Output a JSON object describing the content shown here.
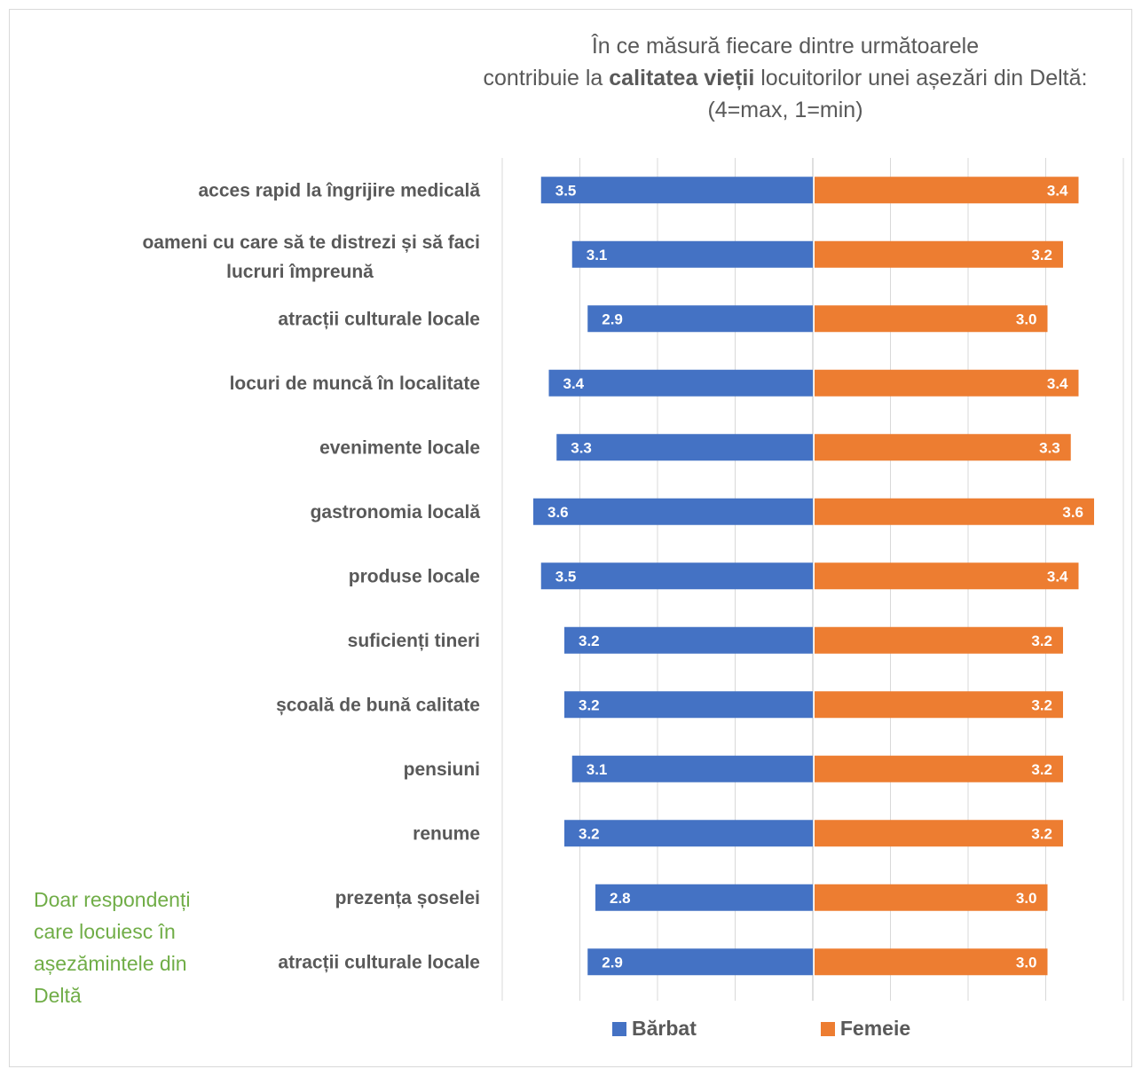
{
  "chart_data": {
    "type": "bar",
    "orientation": "horizontal-diverging",
    "title_line1": "În ce măsură fiecare dintre următoarele",
    "title_line2_pre": "contribuie la ",
    "title_line2_bold": "calitatea vieții",
    "title_line2_post": " locuitorilor unei așezări din Deltă:",
    "title_line3": "(4=max, 1=min)",
    "categories": [
      "acces rapid la îngrijire medicală",
      "oameni cu care să te distrezi și să faci lucruri împreună",
      "atracții culturale locale",
      "locuri de muncă în localitate",
      "evenimente locale",
      "gastronomia locală",
      "produse locale",
      "suficienți tineri",
      "școală de bună calitate",
      "pensiuni",
      "renume",
      "prezența șoselei",
      "atracții culturale locale"
    ],
    "series": [
      {
        "name": "Bărbat",
        "color": "#4472c4",
        "values": [
          3.5,
          3.1,
          2.9,
          3.4,
          3.3,
          3.6,
          3.5,
          3.2,
          3.2,
          3.1,
          3.2,
          2.8,
          2.9
        ],
        "labels": [
          "3.5",
          "3.1",
          "2.9",
          "3.4",
          "3.3",
          "3.6",
          "3.5",
          "3.2",
          "3.2",
          "3.1",
          "3.2",
          "2.8",
          "2.9"
        ]
      },
      {
        "name": "Femeie",
        "color": "#ed7d31",
        "values": [
          3.4,
          3.2,
          3.0,
          3.4,
          3.3,
          3.6,
          3.4,
          3.2,
          3.2,
          3.2,
          3.2,
          3.0,
          3.0
        ],
        "labels": [
          "3.4",
          "3.2",
          "3.0",
          "3.4",
          "3.3",
          "3.6",
          "3.4",
          "3.2",
          "3.2",
          "3.2",
          "3.2",
          "3.0",
          "3.0"
        ]
      }
    ],
    "xlim": [
      -4,
      4
    ],
    "grid": true,
    "legend_position": "bottom"
  },
  "note": "Doar respondenți care locuiesc în așezămintele din Deltă"
}
